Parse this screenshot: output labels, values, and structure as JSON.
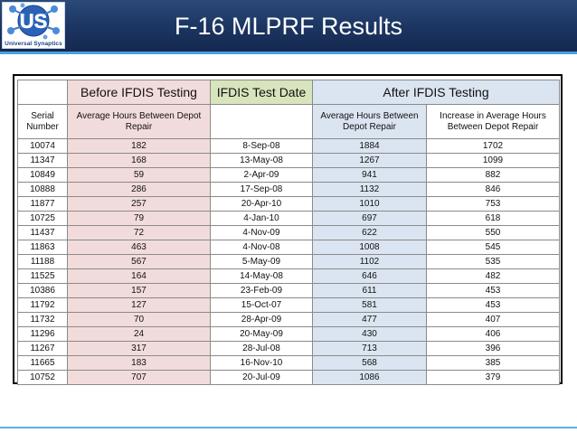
{
  "slide": {
    "title": "F-16 MLPRF Results",
    "logo_text": "Universal Synaptics",
    "logo_letters": "US",
    "colors": {
      "header": "#1b3461",
      "accent_rule": "#4aa0e0",
      "before": "#f2dcdb",
      "date_head": "#d7e4bc",
      "after": "#dbe5f1"
    }
  },
  "table": {
    "group_headers": {
      "before": "Before IFDIS Testing",
      "date": "IFDIS Test Date",
      "after": "After IFDIS Testing"
    },
    "column_headers": {
      "serial": "Serial Number",
      "before_hours": "Average Hours Between Depot Repair",
      "date": "",
      "after_hours": "Average Hours Between Depot Repair",
      "increase": "Increase in Average Hours Between Depot Repair"
    },
    "rows": [
      {
        "serial": "10074",
        "before": "182",
        "date": "8-Sep-08",
        "after": "1884",
        "increase": "1702"
      },
      {
        "serial": "11347",
        "before": "168",
        "date": "13-May-08",
        "after": "1267",
        "increase": "1099"
      },
      {
        "serial": "10849",
        "before": "59",
        "date": "2-Apr-09",
        "after": "941",
        "increase": "882"
      },
      {
        "serial": "10888",
        "before": "286",
        "date": "17-Sep-08",
        "after": "1132",
        "increase": "846"
      },
      {
        "serial": "11877",
        "before": "257",
        "date": "20-Apr-10",
        "after": "1010",
        "increase": "753"
      },
      {
        "serial": "10725",
        "before": "79",
        "date": "4-Jan-10",
        "after": "697",
        "increase": "618"
      },
      {
        "serial": "11437",
        "before": "72",
        "date": "4-Nov-09",
        "after": "622",
        "increase": "550"
      },
      {
        "serial": "11863",
        "before": "463",
        "date": "4-Nov-08",
        "after": "1008",
        "increase": "545"
      },
      {
        "serial": "11188",
        "before": "567",
        "date": "5-May-09",
        "after": "1102",
        "increase": "535"
      },
      {
        "serial": "11525",
        "before": "164",
        "date": "14-May-08",
        "after": "646",
        "increase": "482"
      },
      {
        "serial": "10386",
        "before": "157",
        "date": "23-Feb-09",
        "after": "611",
        "increase": "453"
      },
      {
        "serial": "11792",
        "before": "127",
        "date": "15-Oct-07",
        "after": "581",
        "increase": "453"
      },
      {
        "serial": "11732",
        "before": "70",
        "date": "28-Apr-09",
        "after": "477",
        "increase": "407"
      },
      {
        "serial": "11296",
        "before": "24",
        "date": "20-May-09",
        "after": "430",
        "increase": "406"
      },
      {
        "serial": "11267",
        "before": "317",
        "date": "28-Jul-08",
        "after": "713",
        "increase": "396"
      },
      {
        "serial": "11665",
        "before": "183",
        "date": "16-Nov-10",
        "after": "568",
        "increase": "385"
      },
      {
        "serial": "10752",
        "before": "707",
        "date": "20-Jul-09",
        "after": "1086",
        "increase": "379"
      }
    ]
  }
}
